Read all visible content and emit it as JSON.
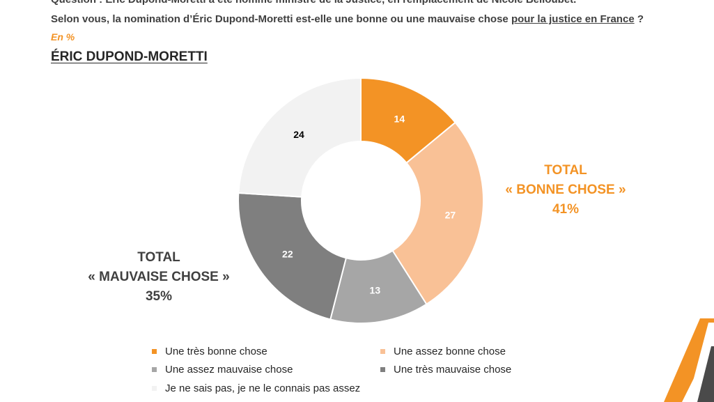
{
  "question": {
    "line1": "Question : Éric Dupond-Moretti a été nommé ministre de la Justice, en remplacement de Nicole Belloubet.",
    "line2_prefix": "Selon vous, la nomination d’Éric Dupond-Moretti est-elle une bonne ou une mauvaise chose ",
    "line2_underlined": "pour la justice en France",
    "line2_suffix": " ?"
  },
  "unit": "En %",
  "subject": "ÉRIC DUPOND-MORETTI",
  "totals": {
    "good": {
      "line1": "TOTAL",
      "line2": "« BONNE CHOSE »",
      "line3": "41%",
      "color": "#f39325"
    },
    "bad": {
      "line1": "TOTAL",
      "line2": "« MAUVAISE CHOSE »",
      "line3": "35%",
      "color": "#404040"
    }
  },
  "chart_data": {
    "type": "pie",
    "donut": true,
    "title": "",
    "categories": [
      "Une très bonne chose",
      "Une assez bonne chose",
      "Une assez mauvaise chose",
      "Une très mauvaise chose",
      "Je ne sais pas, je ne le connais pas assez"
    ],
    "values": [
      14,
      27,
      13,
      22,
      24
    ],
    "colors": [
      "#f39325",
      "#f9c196",
      "#a6a6a6",
      "#7f7f7f",
      "#f2f2f2"
    ],
    "label_colors": [
      "#ffffff",
      "#ffffff",
      "#ffffff",
      "#ffffff",
      "#000000"
    ],
    "legend_position": "bottom"
  }
}
